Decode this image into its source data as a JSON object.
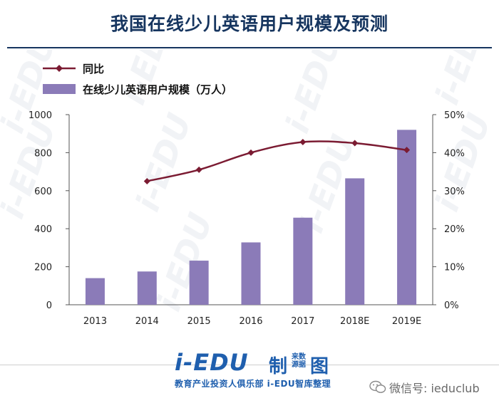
{
  "title": "我国在线少儿英语用户规模及预测",
  "chart_data": {
    "type": "bar+line",
    "categories": [
      "2013",
      "2014",
      "2015",
      "2016",
      "2017",
      "2018E",
      "2019E"
    ],
    "series": [
      {
        "name": "在线少儿英语用户规模（万人）",
        "type": "bar",
        "axis": "left",
        "color": "#8b7bb8",
        "values": [
          140,
          175,
          232,
          328,
          458,
          665,
          920
        ]
      },
      {
        "name": "同比",
        "type": "line",
        "axis": "right",
        "color": "#7b1b32",
        "values": [
          null,
          0.325,
          0.355,
          0.4,
          0.428,
          0.425,
          0.407
        ]
      }
    ],
    "left_axis": {
      "min": 0,
      "max": 1000,
      "ticks": [
        "0",
        "200",
        "400",
        "600",
        "800",
        "1000"
      ]
    },
    "right_axis": {
      "min": 0,
      "max": 0.5,
      "ticks": [
        "0%",
        "10%",
        "20%",
        "30%",
        "40%",
        "50%"
      ]
    },
    "legend_position": "top-left",
    "grid": false
  },
  "watermark": "i-EDU",
  "logo": {
    "main": "i-EDU",
    "zhi": "制",
    "source": "来数源据",
    "tu": "图",
    "sub": "教育产业投资人俱乐部 i-EDU智库整理"
  },
  "wechat": "微信号: ieduclub"
}
